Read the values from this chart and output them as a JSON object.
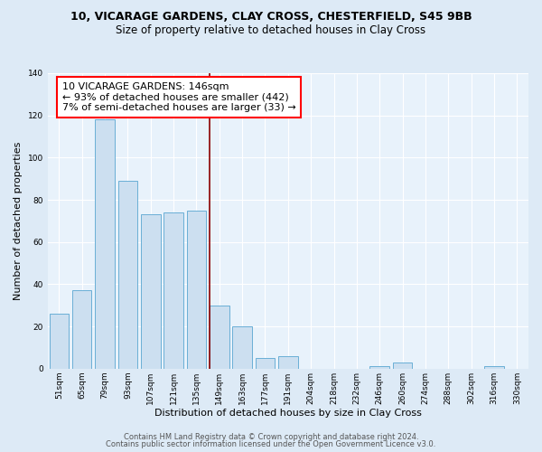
{
  "title_line1": "10, VICARAGE GARDENS, CLAY CROSS, CHESTERFIELD, S45 9BB",
  "title_line2": "Size of property relative to detached houses in Clay Cross",
  "xlabel": "Distribution of detached houses by size in Clay Cross",
  "ylabel": "Number of detached properties",
  "bar_labels": [
    "51sqm",
    "65sqm",
    "79sqm",
    "93sqm",
    "107sqm",
    "121sqm",
    "135sqm",
    "149sqm",
    "163sqm",
    "177sqm",
    "191sqm",
    "204sqm",
    "218sqm",
    "232sqm",
    "246sqm",
    "260sqm",
    "274sqm",
    "288sqm",
    "302sqm",
    "316sqm",
    "330sqm"
  ],
  "bar_values": [
    26,
    37,
    118,
    89,
    73,
    74,
    75,
    30,
    20,
    5,
    6,
    0,
    0,
    0,
    1,
    3,
    0,
    0,
    0,
    1,
    0
  ],
  "bar_color": "#ccdff0",
  "bar_edgecolor": "#6aafd6",
  "vline_color": "#8b0000",
  "annotation_box_text": "10 VICARAGE GARDENS: 146sqm\n← 93% of detached houses are smaller (442)\n7% of semi-detached houses are larger (33) →",
  "ylim": [
    0,
    140
  ],
  "yticks": [
    0,
    20,
    40,
    60,
    80,
    100,
    120,
    140
  ],
  "footer_line1": "Contains HM Land Registry data © Crown copyright and database right 2024.",
  "footer_line2": "Contains public sector information licensed under the Open Government Licence v3.0.",
  "bg_color": "#ddeaf6",
  "plot_bg_color": "#e8f2fb",
  "title_fontsize": 9,
  "subtitle_fontsize": 8.5,
  "xlabel_fontsize": 8,
  "ylabel_fontsize": 8,
  "tick_fontsize": 6.5,
  "ann_fontsize": 8,
  "footer_fontsize": 6
}
